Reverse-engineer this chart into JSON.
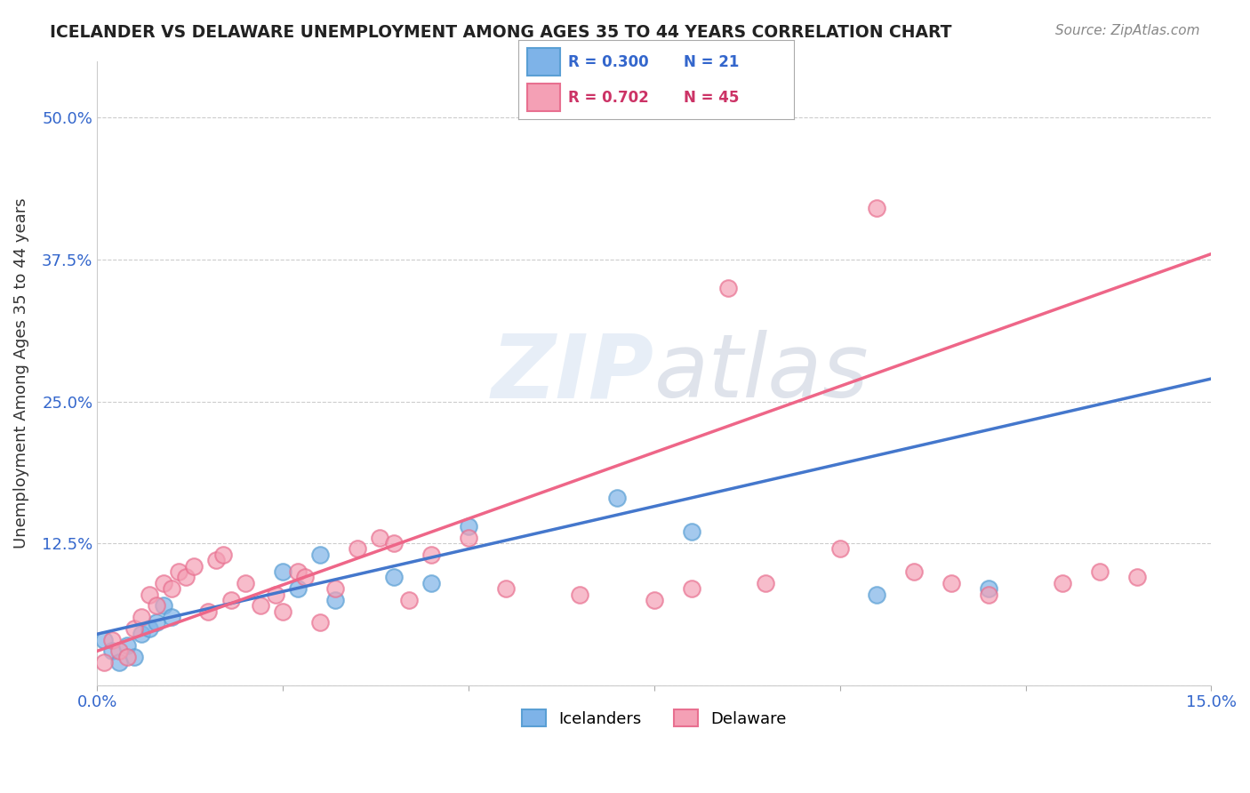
{
  "title": "ICELANDER VS DELAWARE UNEMPLOYMENT AMONG AGES 35 TO 44 YEARS CORRELATION CHART",
  "source": "Source: ZipAtlas.com",
  "ylabel": "Unemployment Among Ages 35 to 44 years",
  "xlabel": "",
  "xlim": [
    0.0,
    0.15
  ],
  "ylim": [
    0.0,
    0.55
  ],
  "xticks": [
    0.0,
    0.025,
    0.05,
    0.075,
    0.1,
    0.125,
    0.15
  ],
  "xticklabels": [
    "0.0%",
    "",
    "",
    "",
    "",
    "",
    "15.0%"
  ],
  "yticks": [
    0.0,
    0.125,
    0.25,
    0.375,
    0.5
  ],
  "yticklabels": [
    "",
    "12.5%",
    "25.0%",
    "37.5%",
    "50.0%"
  ],
  "grid_color": "#cccccc",
  "watermark": "ZIPatlas",
  "icelanders_color": "#7eb3e8",
  "delaware_color": "#f4a0b5",
  "icelanders_edge": "#5a9fd4",
  "delaware_edge": "#e87090",
  "regression_blue": "#4477cc",
  "regression_pink": "#ee6688",
  "legend_R_blue": "0.300",
  "legend_N_blue": "21",
  "legend_R_pink": "0.702",
  "legend_N_pink": "45",
  "icelanders_x": [
    0.001,
    0.002,
    0.003,
    0.004,
    0.005,
    0.006,
    0.007,
    0.008,
    0.009,
    0.01,
    0.025,
    0.027,
    0.03,
    0.032,
    0.04,
    0.045,
    0.05,
    0.07,
    0.08,
    0.105,
    0.12
  ],
  "icelanders_y": [
    0.04,
    0.03,
    0.02,
    0.035,
    0.025,
    0.045,
    0.05,
    0.055,
    0.07,
    0.06,
    0.1,
    0.085,
    0.115,
    0.075,
    0.095,
    0.09,
    0.14,
    0.165,
    0.135,
    0.08,
    0.085
  ],
  "delaware_x": [
    0.001,
    0.002,
    0.003,
    0.004,
    0.005,
    0.006,
    0.007,
    0.008,
    0.009,
    0.01,
    0.011,
    0.012,
    0.013,
    0.015,
    0.016,
    0.017,
    0.018,
    0.02,
    0.022,
    0.024,
    0.025,
    0.027,
    0.028,
    0.03,
    0.032,
    0.035,
    0.038,
    0.04,
    0.042,
    0.045,
    0.05,
    0.055,
    0.065,
    0.075,
    0.08,
    0.085,
    0.09,
    0.1,
    0.105,
    0.11,
    0.115,
    0.12,
    0.13,
    0.135,
    0.14
  ],
  "delaware_y": [
    0.02,
    0.04,
    0.03,
    0.025,
    0.05,
    0.06,
    0.08,
    0.07,
    0.09,
    0.085,
    0.1,
    0.095,
    0.105,
    0.065,
    0.11,
    0.115,
    0.075,
    0.09,
    0.07,
    0.08,
    0.065,
    0.1,
    0.095,
    0.055,
    0.085,
    0.12,
    0.13,
    0.125,
    0.075,
    0.115,
    0.13,
    0.085,
    0.08,
    0.075,
    0.085,
    0.35,
    0.09,
    0.12,
    0.42,
    0.1,
    0.09,
    0.08,
    0.09,
    0.1,
    0.095
  ],
  "blue_trendline_x": [
    0.0,
    0.15
  ],
  "blue_trendline_y": [
    0.045,
    0.27
  ],
  "pink_trendline_x": [
    0.0,
    0.15
  ],
  "pink_trendline_y": [
    0.03,
    0.38
  ]
}
